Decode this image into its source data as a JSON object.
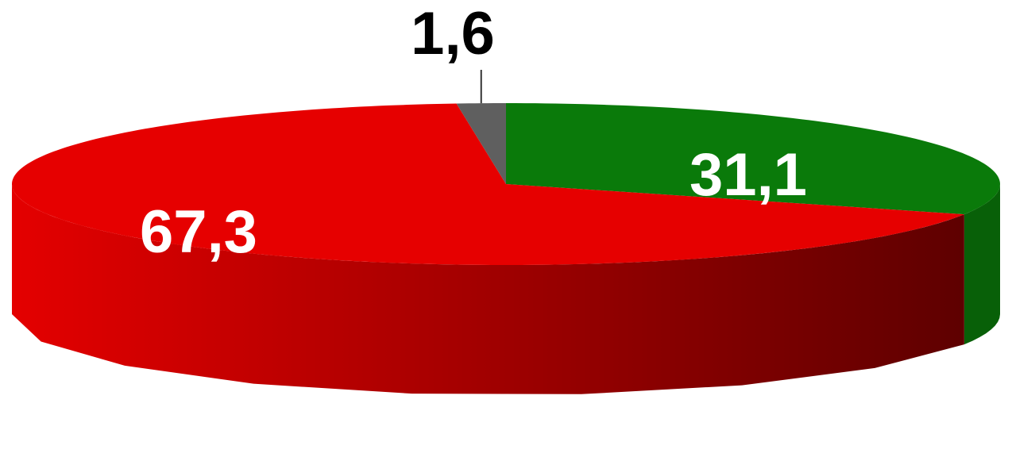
{
  "chart_data": {
    "type": "pie",
    "categories": [
      "",
      "",
      ""
    ],
    "values": [
      31.1,
      67.3,
      1.6
    ],
    "labels": [
      "31,1",
      "67,3",
      "1,6"
    ],
    "colors": [
      "#0a7a0a",
      "#e60000",
      "#5f5f5f"
    ],
    "side_colors": {
      "green": "#086008",
      "red_light": "#e40000",
      "red_dark": "#5e0000",
      "gray": "#444444"
    },
    "label_colors": [
      "#ffffff",
      "#ffffff",
      "#000000"
    ],
    "legend": "none",
    "title": "",
    "style": "3d"
  }
}
